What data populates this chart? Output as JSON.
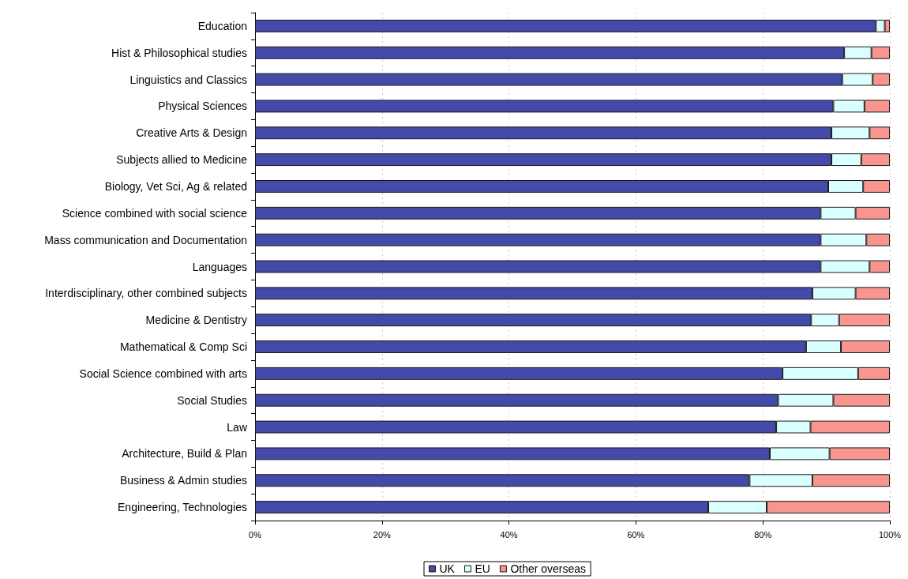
{
  "chart_data": {
    "type": "bar",
    "orientation": "horizontal",
    "stacked": true,
    "categories": [
      "Education",
      "Hist & Philosophical studies",
      "Linguistics and Classics",
      "Physical Sciences",
      "Creative Arts & Design",
      "Subjects allied to Medicine",
      "Biology, Vet Sci, Ag & related",
      "Science combined with social science",
      "Mass communication and Documentation",
      "Languages",
      "Interdisciplinary, other combined subjects",
      "Medicine & Dentistry",
      "Mathematical & Comp Sci",
      "Social Science combined with arts",
      "Social Studies",
      "Law",
      "Architecture, Build & Plan",
      "Business & Admin studies",
      "Engineering, Technologies"
    ],
    "series": [
      {
        "name": "UK",
        "color": "#4549a8",
        "values": [
          97.8,
          92.8,
          92.5,
          91.1,
          90.8,
          90.8,
          90.3,
          89.1,
          89.1,
          89.1,
          87.8,
          87.6,
          86.8,
          83.1,
          82.4,
          82.1,
          81.1,
          77.9,
          71.4
        ]
      },
      {
        "name": "EU",
        "color": "#d9ffff",
        "values": [
          1.4,
          4.3,
          4.8,
          4.9,
          6.0,
          4.7,
          5.5,
          5.5,
          7.2,
          7.7,
          6.8,
          4.4,
          5.5,
          11.9,
          8.7,
          5.4,
          9.4,
          9.9,
          9.2
        ]
      },
      {
        "name": "Other overseas",
        "color": "#f7958e",
        "values": [
          0.8,
          2.9,
          2.7,
          4.0,
          3.2,
          4.5,
          4.2,
          5.4,
          3.7,
          3.2,
          5.4,
          8.0,
          7.7,
          5.0,
          8.9,
          12.5,
          9.5,
          12.2,
          19.4
        ]
      }
    ],
    "xlim": [
      0,
      100
    ],
    "xticks": [
      {
        "value": 0,
        "label": "0%"
      },
      {
        "value": 20,
        "label": "20%"
      },
      {
        "value": 40,
        "label": "40%"
      },
      {
        "value": 60,
        "label": "60%"
      },
      {
        "value": 80,
        "label": "80%"
      },
      {
        "value": 100,
        "label": "100%"
      }
    ],
    "grid": "x",
    "legend": "bottom"
  }
}
